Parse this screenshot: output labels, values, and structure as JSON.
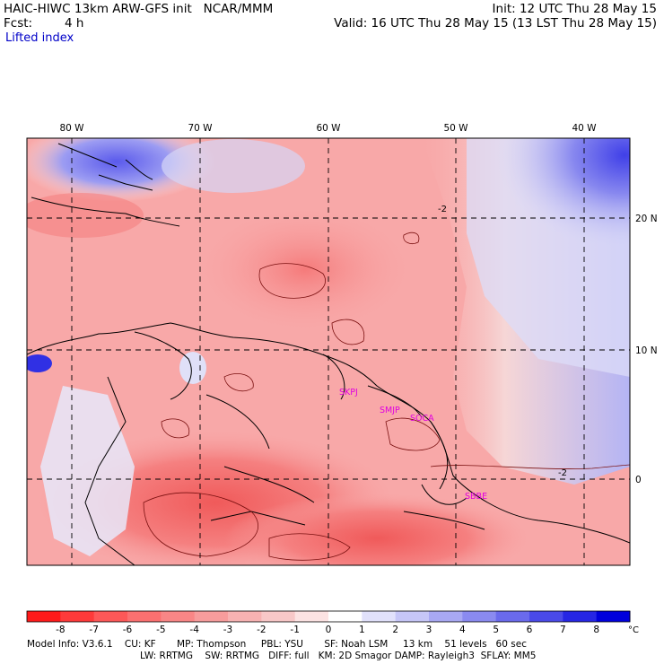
{
  "header": {
    "title_left": "HAIC-HIWC 13km ARW-GFS init   NCAR/MMM",
    "forecast_label": "Fcst:",
    "forecast_value": "4 h",
    "init": "Init: 12 UTC Thu 28 May 15",
    "valid": "Valid: 16 UTC Thu 28 May 15 (13 LST Thu 28 May 15)",
    "field_name": "Lifted index"
  },
  "map": {
    "lon_labels": [
      "80 W",
      "70 W",
      "60 W",
      "50 W",
      "40 W"
    ],
    "lat_labels": [
      "20 N",
      "10 N",
      "0"
    ],
    "stations": [
      "SKPJ",
      "SMJP",
      "SOCA",
      "SBBE"
    ],
    "contour_label": "-2",
    "colors": {
      "station": "#e000e0",
      "gridline": "#000000"
    }
  },
  "colorbar": {
    "ticks": [
      "-8",
      "-7",
      "-6",
      "-5",
      "-4",
      "-3",
      "-2",
      "-1",
      "0",
      "1",
      "2",
      "3",
      "4",
      "5",
      "6",
      "7",
      "8"
    ],
    "unit": "°C",
    "colors": [
      "#ff1a1a",
      "#fe3a3a",
      "#fd5858",
      "#fb7070",
      "#f98686",
      "#f79c9c",
      "#f7b2b2",
      "#f8c8c8",
      "#fce3e3",
      "#ffffff",
      "#e1e1fb",
      "#c6c6f7",
      "#a8a8f3",
      "#8a8af0",
      "#6a6aec",
      "#4a4ae8",
      "#2626e4",
      "#0000dc"
    ]
  },
  "footer": {
    "line1": "Model Info: V3.6.1    CU: KF       MP: Thompson     PBL: YSU       SF: Noah LSM     13 km    51 levels   60 sec",
    "line2": "LW: RRTMG    SW: RRTMG   DIFF: full   KM: 2D Smagor DAMP: Rayleigh3  SFLAY: MM5"
  }
}
